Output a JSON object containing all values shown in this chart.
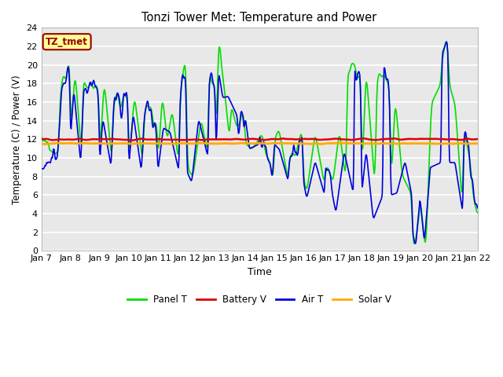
{
  "title": "Tonzi Tower Met: Temperature and Power",
  "xlabel": "Time",
  "ylabel": "Temperature (C) / Power (V)",
  "ylim": [
    0,
    24
  ],
  "xlim": [
    0,
    15
  ],
  "xtick_labels": [
    "Jan 7",
    "Jan 8",
    "Jan 9",
    "Jan 10",
    "Jan 11",
    "Jan 12",
    "Jan 13",
    "Jan 14",
    "Jan 15",
    "Jan 16",
    "Jan 17",
    "Jan 18",
    "Jan 19",
    "Jan 20",
    "Jan 21",
    "Jan 22"
  ],
  "ytick_values": [
    0,
    2,
    4,
    6,
    8,
    10,
    12,
    14,
    16,
    18,
    20,
    22,
    24
  ],
  "bg_color": "#e8e8e8",
  "grid_color": "#ffffff",
  "annotation_text": "TZ_tmet",
  "annotation_bg": "#ffff99",
  "annotation_border": "#990000",
  "annotation_text_color": "#990000",
  "series": {
    "panel_t": {
      "color": "#00dd00",
      "label": "Panel T",
      "lw": 1.2
    },
    "battery_v": {
      "color": "#dd0000",
      "label": "Battery V",
      "lw": 1.8
    },
    "air_t": {
      "color": "#0000dd",
      "label": "Air T",
      "lw": 1.2
    },
    "solar_v": {
      "color": "#ffaa00",
      "label": "Solar V",
      "lw": 2.0
    }
  }
}
